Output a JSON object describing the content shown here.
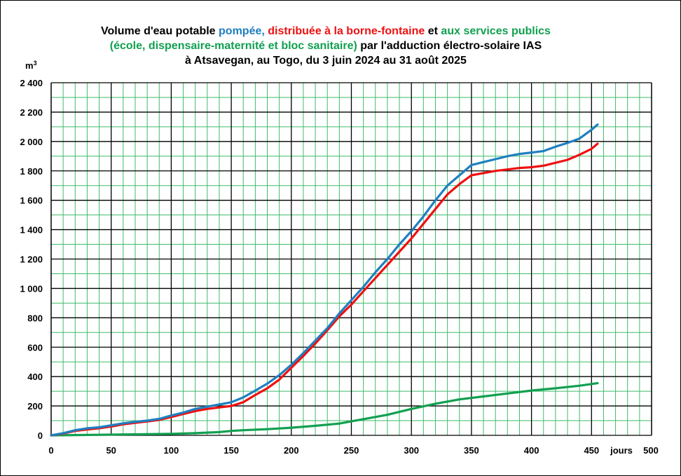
{
  "chart_data": {
    "type": "line",
    "title": {
      "line1_a": "Volume d'eau potable ",
      "line1_b": "pompée,",
      "line1_c": " ",
      "line1_d": "distribuée à la borne-fontaine",
      "line1_e": " et ",
      "line1_f": "aux services publics",
      "line2_a": "(école, dispensaire-maternité et bloc sanitaire)",
      "line2_b": " par l'adduction électro-solaire IAS",
      "line3": "à Atsavegan,  au Togo, du 3 juin 2024 au 31 août 2025"
    },
    "ylabel": "m",
    "ylabel_sup": "3",
    "xlabel": "jours",
    "xlim": [
      0,
      500
    ],
    "ylim": [
      0,
      2400
    ],
    "x_ticks": [
      0,
      50,
      100,
      150,
      200,
      250,
      300,
      350,
      400,
      450,
      500
    ],
    "y_ticks": [
      0,
      200,
      400,
      600,
      800,
      1000,
      1200,
      1400,
      1600,
      1800,
      2000,
      2200,
      2400
    ],
    "y_tick_labels": [
      "0",
      "200",
      "400",
      "600",
      "800",
      "1 000",
      "1 200",
      "1 400",
      "1 600",
      "1 800",
      "2 000",
      "2 200",
      "2 400"
    ],
    "grid": true,
    "series": [
      {
        "key": "pumped",
        "color": "#1f7fc0",
        "x": [
          0,
          10,
          20,
          30,
          40,
          50,
          60,
          70,
          80,
          90,
          100,
          110,
          120,
          130,
          140,
          150,
          160,
          170,
          180,
          190,
          200,
          210,
          220,
          230,
          240,
          250,
          260,
          270,
          280,
          290,
          300,
          310,
          320,
          330,
          340,
          350,
          360,
          370,
          380,
          390,
          400,
          410,
          420,
          430,
          440,
          450,
          455
        ],
        "y": [
          0,
          15,
          35,
          48,
          55,
          68,
          82,
          92,
          100,
          112,
          135,
          155,
          180,
          195,
          210,
          225,
          258,
          305,
          352,
          410,
          480,
          560,
          645,
          730,
          830,
          920,
          1010,
          1110,
          1200,
          1300,
          1390,
          1490,
          1600,
          1700,
          1770,
          1840,
          1860,
          1880,
          1900,
          1915,
          1925,
          1935,
          1965,
          1990,
          2020,
          2080,
          2115
        ]
      },
      {
        "key": "distributed",
        "color": "#ee1111",
        "x": [
          0,
          10,
          20,
          30,
          40,
          50,
          60,
          70,
          80,
          90,
          100,
          110,
          120,
          130,
          140,
          150,
          160,
          170,
          180,
          190,
          200,
          210,
          220,
          230,
          240,
          250,
          260,
          270,
          280,
          290,
          300,
          310,
          320,
          330,
          340,
          350,
          360,
          370,
          380,
          390,
          400,
          410,
          420,
          430,
          440,
          450,
          455
        ],
        "y": [
          0,
          12,
          30,
          40,
          48,
          60,
          75,
          85,
          95,
          105,
          125,
          145,
          165,
          180,
          190,
          200,
          225,
          275,
          320,
          380,
          460,
          540,
          625,
          715,
          810,
          890,
          980,
          1070,
          1160,
          1250,
          1340,
          1440,
          1540,
          1640,
          1710,
          1770,
          1785,
          1800,
          1810,
          1820,
          1825,
          1835,
          1855,
          1875,
          1910,
          1950,
          1985
        ]
      },
      {
        "key": "public_services",
        "color": "#11a050",
        "x": [
          0,
          20,
          40,
          60,
          80,
          100,
          120,
          140,
          150,
          160,
          180,
          200,
          220,
          240,
          260,
          280,
          300,
          320,
          340,
          360,
          380,
          400,
          420,
          440,
          455
        ],
        "y": [
          0,
          2,
          4,
          6,
          8,
          10,
          15,
          22,
          30,
          35,
          42,
          52,
          65,
          80,
          110,
          140,
          180,
          215,
          245,
          265,
          285,
          305,
          320,
          338,
          355
        ]
      }
    ]
  }
}
